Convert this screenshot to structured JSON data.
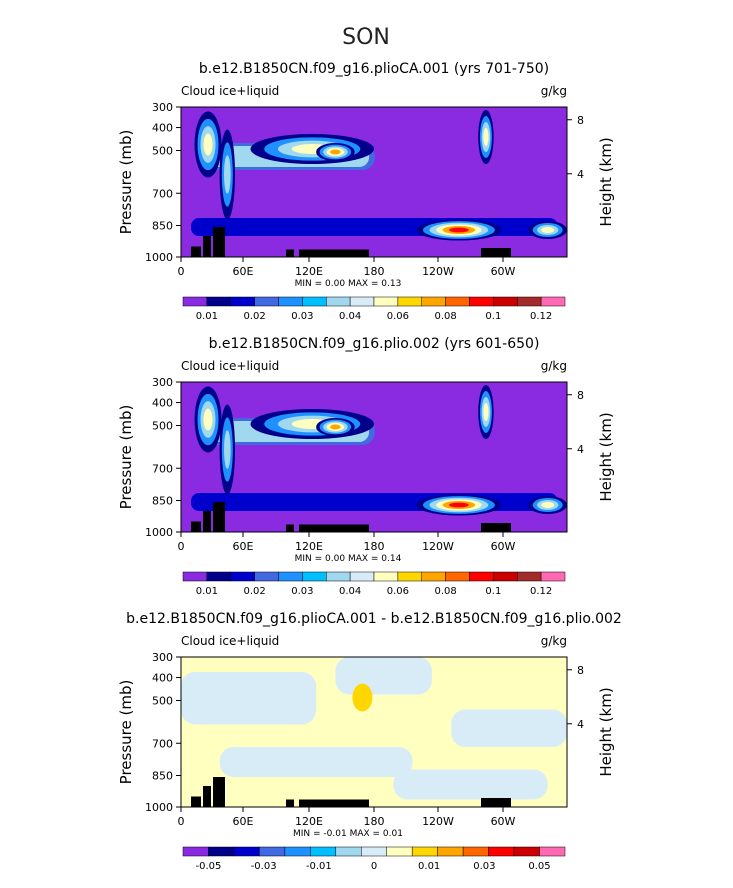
{
  "main_title": "SON",
  "chart_data": [
    {
      "type": "heatmap",
      "title": "b.e12.B1850CN.f09_g16.plioCA.001 (yrs 701-750)",
      "left_label": "Cloud ice+liquid",
      "units": "g/kg",
      "xlabel": "",
      "ylabel": "Pressure (mb)",
      "ylabel_right": "Height (km)",
      "x_ticks": [
        "0",
        "60E",
        "120E",
        "180",
        "120W",
        "60W"
      ],
      "y_ticks": [
        "300",
        "400",
        "500",
        "700",
        "850",
        "1000"
      ],
      "height_ticks": [
        "8",
        "4"
      ],
      "stats": "MIN =    0.00   MAX =    0.13",
      "colorbar": {
        "labels": [
          "0.01",
          "0.02",
          "0.03",
          "0.04",
          "0.06",
          "0.08",
          "0.1",
          "0.12"
        ],
        "colors": [
          "#8a2be2",
          "#00008b",
          "#0000cd",
          "#4169e1",
          "#1e90ff",
          "#00bfff",
          "#a0d8ef",
          "#d8ecf8",
          "#ffffc0",
          "#ffd700",
          "#ffa500",
          "#ff6600",
          "#ff0000",
          "#cc0000",
          "#a52a2a",
          "#ff69b4"
        ]
      },
      "background_color": "#8a2be2"
    },
    {
      "type": "heatmap",
      "title": "b.e12.B1850CN.f09_g16.plio.002 (yrs 601-650)",
      "left_label": "Cloud ice+liquid",
      "units": "g/kg",
      "xlabel": "",
      "ylabel": "Pressure (mb)",
      "ylabel_right": "Height (km)",
      "x_ticks": [
        "0",
        "60E",
        "120E",
        "180",
        "120W",
        "60W"
      ],
      "y_ticks": [
        "300",
        "400",
        "500",
        "700",
        "850",
        "1000"
      ],
      "height_ticks": [
        "8",
        "4"
      ],
      "stats": "MIN =    0.00   MAX =    0.14",
      "colorbar": {
        "labels": [
          "0.01",
          "0.02",
          "0.03",
          "0.04",
          "0.06",
          "0.08",
          "0.1",
          "0.12"
        ],
        "colors": [
          "#8a2be2",
          "#00008b",
          "#0000cd",
          "#4169e1",
          "#1e90ff",
          "#00bfff",
          "#a0d8ef",
          "#d8ecf8",
          "#ffffc0",
          "#ffd700",
          "#ffa500",
          "#ff6600",
          "#ff0000",
          "#cc0000",
          "#a52a2a",
          "#ff69b4"
        ]
      },
      "background_color": "#8a2be2"
    },
    {
      "type": "heatmap",
      "title": "b.e12.B1850CN.f09_g16.plioCA.001 - b.e12.B1850CN.f09_g16.plio.002",
      "left_label": "Cloud ice+liquid",
      "units": "g/kg",
      "xlabel": "",
      "ylabel": "Pressure (mb)",
      "ylabel_right": "Height (km)",
      "x_ticks": [
        "0",
        "60E",
        "120E",
        "180",
        "120W",
        "60W"
      ],
      "y_ticks": [
        "300",
        "400",
        "500",
        "700",
        "850",
        "1000"
      ],
      "height_ticks": [
        "8",
        "4"
      ],
      "stats": "MIN =  -0.01   MAX =    0.01",
      "colorbar": {
        "labels": [
          "-0.05",
          "-0.03",
          "-0.01",
          "0",
          "0.01",
          "0.03",
          "0.05"
        ],
        "colors": [
          "#8a2be2",
          "#00008b",
          "#0000cd",
          "#4169e1",
          "#1e90ff",
          "#00bfff",
          "#a0d8ef",
          "#d8ecf8",
          "#ffffc0",
          "#ffd700",
          "#ffa500",
          "#ff6600",
          "#ff0000",
          "#cc0000",
          "#ff69b4"
        ]
      },
      "background_color": "#ffffc0"
    }
  ]
}
